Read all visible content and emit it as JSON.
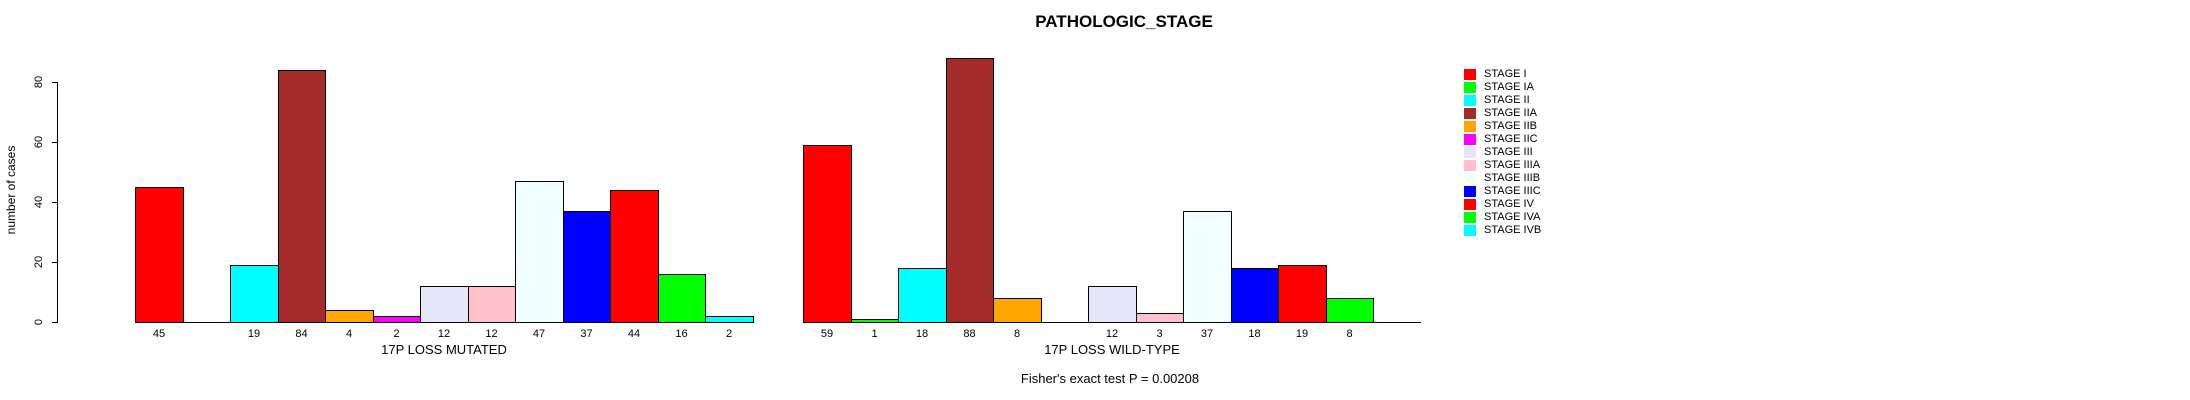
{
  "page": {
    "background_color": "#FFFFFF",
    "text_color": "#000000"
  },
  "chart_data": {
    "type": "bar",
    "title": "PATHOLOGIC_STAGE",
    "ylabel": "number of cases",
    "xlabel": "",
    "ylim": [
      0,
      80
    ],
    "yticks": [
      0,
      20,
      40,
      60,
      80
    ],
    "grid": false,
    "legend_position": "right",
    "bar_borders": "#000000",
    "categories": [
      "STAGE I",
      "STAGE IA",
      "STAGE II",
      "STAGE IIA",
      "STAGE IIB",
      "STAGE IIC",
      "STAGE III",
      "STAGE IIIA",
      "STAGE IIIB",
      "STAGE IIIC",
      "STAGE IV",
      "STAGE IVA",
      "STAGE IVB"
    ],
    "colors": [
      "#FF0000",
      "#00FF00",
      "#00FFFF",
      "#A52A2A",
      "#FFA500",
      "#FF00FF",
      "#E6E6FA",
      "#FFC0CB",
      "#F0FFFF",
      "#0000FF",
      "#FF0000",
      "#00FF00",
      "#00FFFF"
    ],
    "groups": [
      {
        "xlabel": "17P LOSS MUTATED",
        "values": [
          45,
          0,
          19,
          84,
          4,
          2,
          12,
          12,
          47,
          37,
          44,
          16,
          2
        ]
      },
      {
        "xlabel": "17P LOSS WILD-TYPE",
        "values": [
          59,
          1,
          18,
          88,
          8,
          0,
          12,
          3,
          37,
          18,
          19,
          8,
          0
        ]
      }
    ],
    "bar_value_labels": "values shown under each nonzero bar",
    "annotation": "Fisher's exact test P = 0.00208"
  }
}
